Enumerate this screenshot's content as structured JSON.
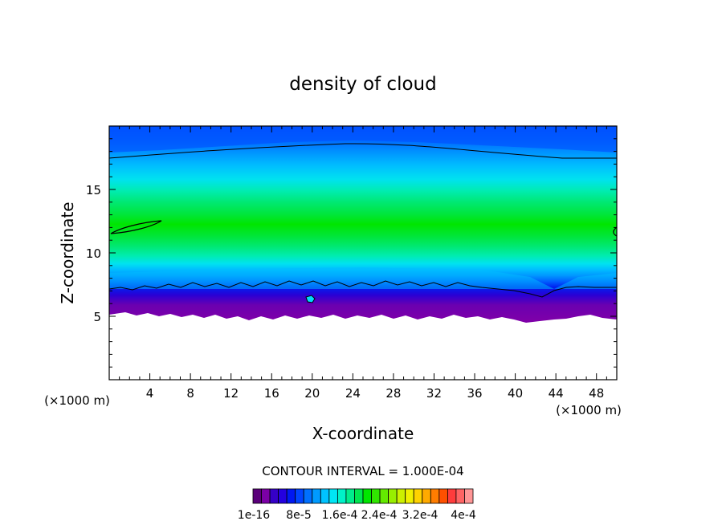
{
  "chart_data": {
    "type": "heatmap",
    "title": "density of cloud",
    "xlabel": "X-coordinate",
    "ylabel": "Z-coordinate",
    "x_unit": "(×1000 m)",
    "z_unit": "(×1000 m)",
    "xlim": [
      0,
      50
    ],
    "ylim": [
      0,
      20
    ],
    "x_ticks": [
      "4",
      "8",
      "12",
      "16",
      "20",
      "24",
      "28",
      "32",
      "36",
      "40",
      "44",
      "48"
    ],
    "y_ticks": [
      "5",
      "10",
      "15"
    ],
    "contour_interval_text": "CONTOUR INTERVAL = 1.000E-04",
    "colorbar_labels": [
      "1e-16",
      "8e-5",
      "1.6e-4",
      "2.4e-4",
      "3.2e-4",
      "4e-4"
    ],
    "colorbar_colors": [
      "#5a007a",
      "#7b00a6",
      "#3500c8",
      "#2400e0",
      "#0018f2",
      "#0044ff",
      "#0070ff",
      "#009bff",
      "#00c3ff",
      "#00e6f5",
      "#00f2c8",
      "#00ec8c",
      "#00e650",
      "#00e600",
      "#30e600",
      "#64ea00",
      "#98ee00",
      "#ccf000",
      "#f0f000",
      "#ffd200",
      "#ffaa00",
      "#ff7d00",
      "#ff5000",
      "#ff3c3c",
      "#ff6464",
      "#ff9696"
    ],
    "field_summary": "Cloud density layer from about z=5 to z=20 (×1000 m) across the full x range; peak values near z≈12; sharp, ragged lower boundary near z≈5–7."
  }
}
